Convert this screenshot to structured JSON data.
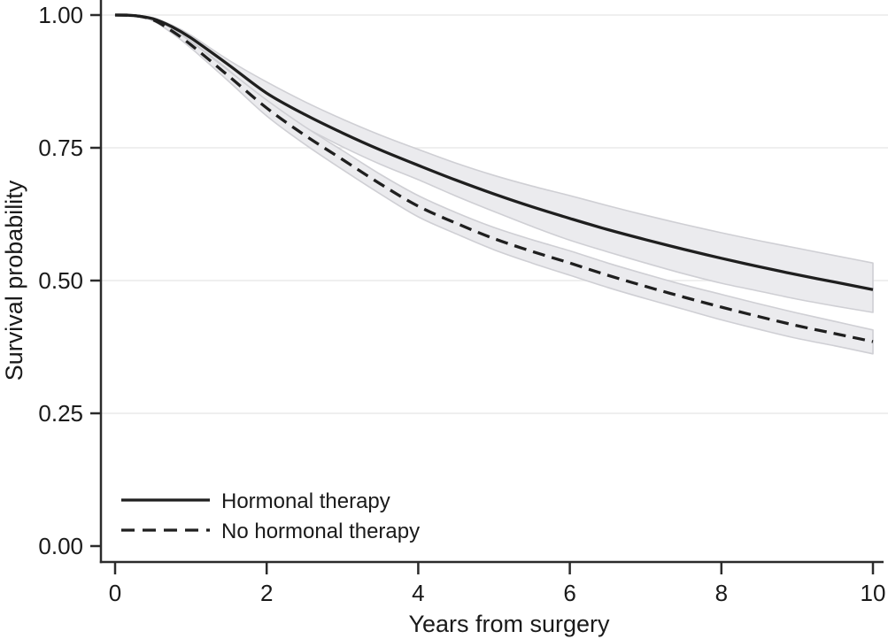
{
  "figure": {
    "background_color": "#ffffff",
    "text_color": "#1a1a1a",
    "axis_color": "#2b2b2b",
    "gridline_color": "#efefef"
  },
  "chart_data": {
    "type": "line",
    "subtype": "survival-curves-with-confidence-bands",
    "title": "",
    "xlabel": "Years from surgery",
    "ylabel": "Survival probability",
    "xlim": [
      0,
      10
    ],
    "ylim": [
      0.0,
      1.0
    ],
    "xticks": [
      0,
      2,
      4,
      6,
      8,
      10
    ],
    "xtick_labels": [
      "0",
      "2",
      "4",
      "6",
      "8",
      "10"
    ],
    "yticks": [
      0.0,
      0.25,
      0.5,
      0.75,
      1.0
    ],
    "ytick_labels": [
      "0.00",
      "0.25",
      "0.50",
      "0.75",
      "1.00"
    ],
    "grid": "horizontal-only",
    "legend_position": "inside-bottom-left",
    "x": [
      0,
      0.25,
      0.5,
      0.75,
      1,
      1.5,
      2,
      2.5,
      3,
      3.5,
      4,
      4.5,
      5,
      5.5,
      6,
      6.5,
      7,
      7.5,
      8,
      8.5,
      9,
      9.5,
      10
    ],
    "series": [
      {
        "name": "Hormonal therapy",
        "line_style": "solid",
        "color": "#1f1f1f",
        "ci_fill": "#ebebee",
        "ci_edge": "#cfcfd4",
        "y": [
          1.0,
          0.999,
          0.993,
          0.978,
          0.957,
          0.906,
          0.853,
          0.813,
          0.778,
          0.746,
          0.717,
          0.689,
          0.663,
          0.639,
          0.617,
          0.596,
          0.577,
          0.559,
          0.542,
          0.526,
          0.511,
          0.497,
          0.483
        ],
        "ci_upper": [
          1.0,
          1.0,
          0.995,
          0.981,
          0.962,
          0.915,
          0.874,
          0.837,
          0.804,
          0.774,
          0.747,
          0.721,
          0.698,
          0.678,
          0.66,
          0.641,
          0.623,
          0.606,
          0.59,
          0.575,
          0.561,
          0.547,
          0.533
        ],
        "ci_lower": [
          1.0,
          0.998,
          0.991,
          0.974,
          0.951,
          0.896,
          0.832,
          0.789,
          0.752,
          0.719,
          0.69,
          0.659,
          0.63,
          0.602,
          0.576,
          0.554,
          0.533,
          0.513,
          0.495,
          0.48,
          0.465,
          0.452,
          0.44
        ]
      },
      {
        "name": "No hormonal therapy",
        "line_style": "dashed",
        "color": "#1f1f1f",
        "ci_fill": "#ebebee",
        "ci_edge": "#cfcfd4",
        "y": [
          1.0,
          0.999,
          0.991,
          0.97,
          0.944,
          0.885,
          0.825,
          0.774,
          0.728,
          0.682,
          0.64,
          0.608,
          0.579,
          0.555,
          0.533,
          0.51,
          0.489,
          0.469,
          0.45,
          0.432,
          0.415,
          0.4,
          0.385
        ],
        "ci_upper": [
          1.0,
          1.0,
          0.993,
          0.974,
          0.95,
          0.895,
          0.84,
          0.79,
          0.745,
          0.7,
          0.66,
          0.628,
          0.6,
          0.577,
          0.556,
          0.533,
          0.512,
          0.492,
          0.474,
          0.456,
          0.439,
          0.423,
          0.407
        ],
        "ci_lower": [
          1.0,
          0.998,
          0.989,
          0.966,
          0.938,
          0.875,
          0.81,
          0.757,
          0.709,
          0.663,
          0.62,
          0.588,
          0.558,
          0.533,
          0.51,
          0.487,
          0.466,
          0.446,
          0.426,
          0.408,
          0.391,
          0.377,
          0.362
        ]
      }
    ]
  },
  "legend": {
    "entries": [
      {
        "label": "Hormonal therapy",
        "sample": "solid-line"
      },
      {
        "label": "No hormonal therapy",
        "sample": "dashed-line"
      }
    ]
  }
}
